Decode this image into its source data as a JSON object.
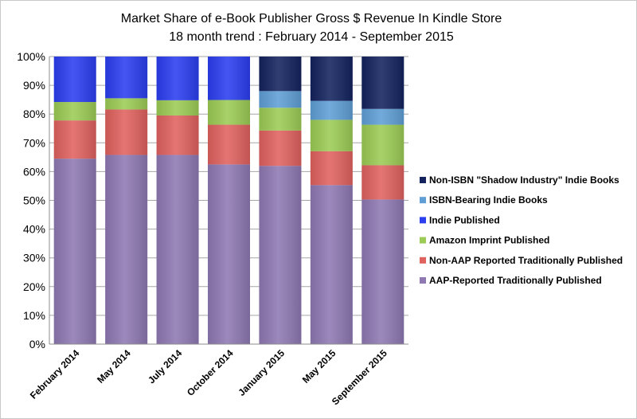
{
  "chart_data": {
    "type": "bar",
    "stacked": true,
    "title": "Market Share of e-Book Publisher Gross $ Revenue In Kindle Store",
    "subtitle": "18 month trend : February 2014 - September 2015",
    "categories": [
      "February 2014",
      "May 2014",
      "July 2014",
      "October 2014",
      "January 2015",
      "May 2015",
      "September 2015"
    ],
    "ylim": [
      0,
      100
    ],
    "yticks": [
      "0%",
      "10%",
      "20%",
      "30%",
      "40%",
      "50%",
      "60%",
      "70%",
      "80%",
      "90%",
      "100%"
    ],
    "grid": true,
    "legend_position": "right",
    "series": [
      {
        "name": "AAP-Reported Traditionally Published",
        "color": "#8f79b3",
        "values": [
          64.5,
          65.8,
          65.8,
          62.5,
          62.0,
          55.3,
          50.3
        ]
      },
      {
        "name": "Non-AAP Reported Traditionally Published",
        "color": "#e0625f",
        "values": [
          13.3,
          15.8,
          13.7,
          13.8,
          12.3,
          11.8,
          11.9
        ]
      },
      {
        "name": "Amazon Imprint Published",
        "color": "#9ccc55",
        "values": [
          6.4,
          3.9,
          5.3,
          8.6,
          7.9,
          10.9,
          14.1
        ]
      },
      {
        "name": "Indie Published",
        "color": "#2b3ef0",
        "values": [
          15.8,
          14.5,
          15.2,
          15.1,
          0,
          0,
          0
        ]
      },
      {
        "name": "ISBN-Bearing Indie Books",
        "color": "#5f9fd6",
        "values": [
          0,
          0,
          0,
          0,
          5.8,
          6.6,
          5.5
        ]
      },
      {
        "name": "Non-ISBN \"Shadow Industry\" Indie Books",
        "color": "#14235e",
        "values": [
          0,
          0,
          0,
          0,
          12.0,
          15.4,
          18.2
        ]
      }
    ]
  }
}
